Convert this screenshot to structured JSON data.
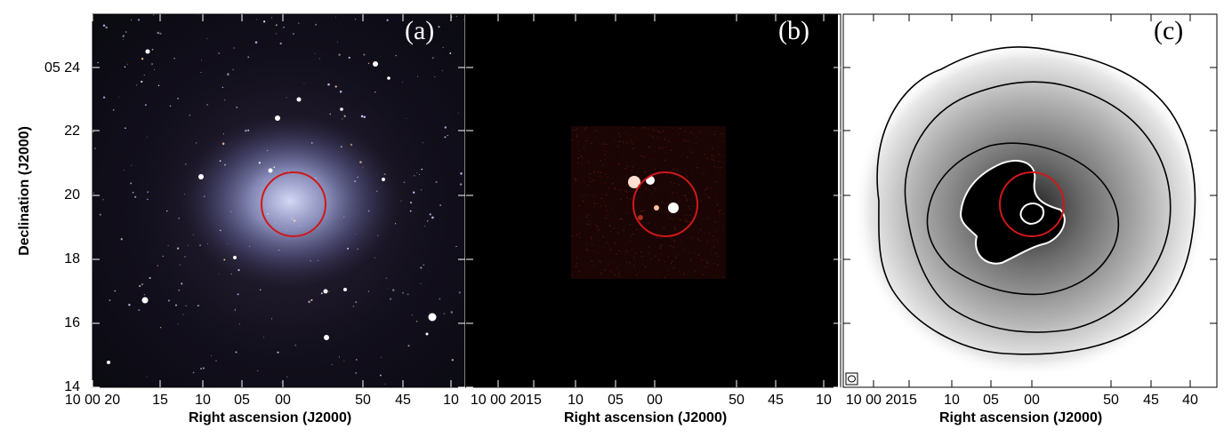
{
  "figure": {
    "panels": [
      {
        "id": "a",
        "label": "(a)"
      },
      {
        "id": "b",
        "label": "(b)"
      },
      {
        "id": "c",
        "label": "(c)"
      }
    ],
    "x_axis_title": "Right ascension (J2000)",
    "y_axis_title": "Declination (J2000)",
    "y_ticks": [
      "05 24",
      "22",
      "20",
      "18",
      "16",
      "14"
    ],
    "x_ticks_ab": [
      "10 00 20",
      "15",
      "10",
      "05",
      "00",
      "50",
      "45",
      "10"
    ],
    "x_ticks_c": [
      "10 00 20",
      "15",
      "10",
      "05",
      "00",
      "50",
      "45",
      "40"
    ],
    "colors": {
      "circle": "#d01818",
      "contour_black": "#000000",
      "contour_white": "#ffffff"
    }
  }
}
